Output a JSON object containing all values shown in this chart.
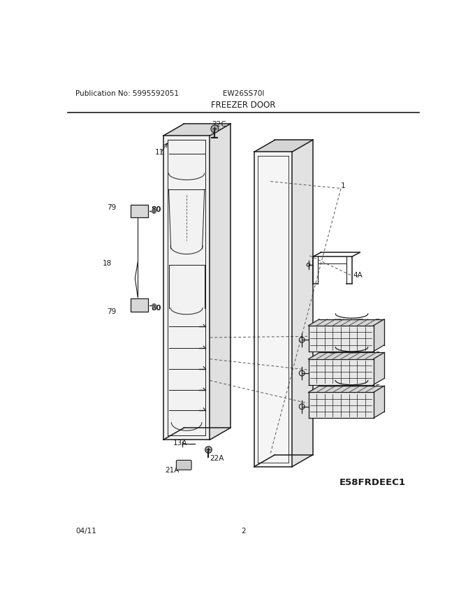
{
  "title": "FREEZER DOOR",
  "pub_no": "Publication No: 5995592051",
  "model": "EW26SS70I",
  "date": "04/11",
  "page": "2",
  "diagram_id": "E58FRDEEC1",
  "bg_color": "#ffffff",
  "line_color": "#1a1a1a",
  "gray": "#aaaaaa",
  "light_gray": "#e8e8e8"
}
